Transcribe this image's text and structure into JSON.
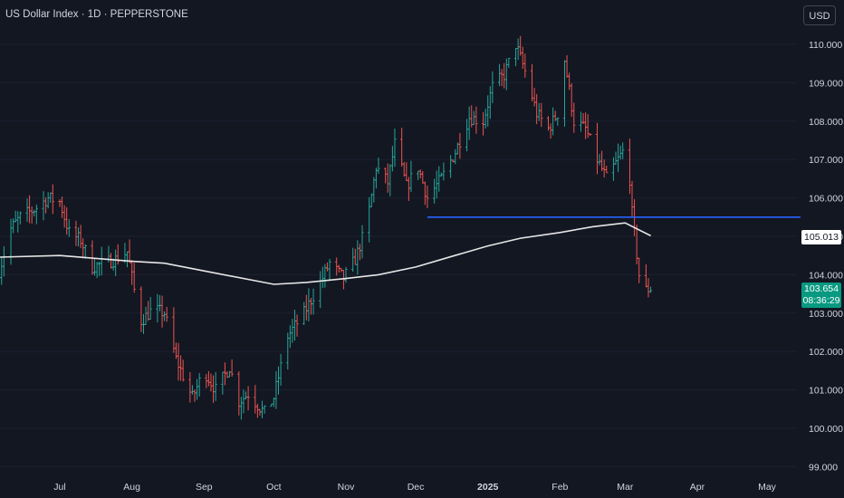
{
  "header": {
    "title": "US Dollar Index · 1D · PEPPERSTONE",
    "currency_button": "USD"
  },
  "colors": {
    "background": "#131722",
    "up": "#26a69a",
    "down": "#ef5350",
    "ma_line": "#e6e6e6",
    "support_line": "#2962ff",
    "price_tag": "#089981"
  },
  "tags": {
    "ma_value": "105.013",
    "last_price": "103.654",
    "countdown": "08:36:29"
  },
  "chart_data": {
    "type": "ohlc",
    "title": "US Dollar Index · 1D · PEPPERSTONE",
    "ylim": [
      98.8,
      110.4
    ],
    "y_ticks": [
      "110.000",
      "109.000",
      "108.000",
      "107.000",
      "106.000",
      "105.000",
      "104.000",
      "103.000",
      "102.000",
      "101.000",
      "100.000",
      "99.000"
    ],
    "x_ticks": [
      {
        "label": "Jul",
        "date": "2024-07-01"
      },
      {
        "label": "Aug",
        "date": "2024-08-01"
      },
      {
        "label": "Sep",
        "date": "2024-09-01"
      },
      {
        "label": "Oct",
        "date": "2024-10-01"
      },
      {
        "label": "Nov",
        "date": "2024-11-01"
      },
      {
        "label": "Dec",
        "date": "2024-12-01"
      },
      {
        "label": "2025",
        "date": "2025-01-01"
      },
      {
        "label": "Feb",
        "date": "2025-02-01"
      },
      {
        "label": "Mar",
        "date": "2025-03-01"
      },
      {
        "label": "Apr",
        "date": "2025-04-01"
      },
      {
        "label": "May",
        "date": "2025-05-01"
      }
    ],
    "price_path": [
      [
        "2024-06-05",
        104.1
      ],
      [
        "2024-06-10",
        105.2
      ],
      [
        "2024-06-14",
        105.5
      ],
      [
        "2024-06-20",
        105.7
      ],
      [
        "2024-06-26",
        106.0
      ],
      [
        "2024-07-01",
        105.9
      ],
      [
        "2024-07-05",
        105.1
      ],
      [
        "2024-07-10",
        104.9
      ],
      [
        "2024-07-15",
        104.2
      ],
      [
        "2024-07-20",
        104.3
      ],
      [
        "2024-07-25",
        104.4
      ],
      [
        "2024-07-30",
        104.6
      ],
      [
        "2024-08-02",
        103.6
      ],
      [
        "2024-08-05",
        102.8
      ],
      [
        "2024-08-10",
        103.1
      ],
      [
        "2024-08-15",
        103.0
      ],
      [
        "2024-08-20",
        101.8
      ],
      [
        "2024-08-27",
        100.8
      ],
      [
        "2024-09-01",
        101.5
      ],
      [
        "2024-09-06",
        101.0
      ],
      [
        "2024-09-12",
        101.6
      ],
      [
        "2024-09-16",
        100.7
      ],
      [
        "2024-09-20",
        100.9
      ],
      [
        "2024-09-27",
        100.4
      ],
      [
        "2024-10-01",
        100.8
      ],
      [
        "2024-10-07",
        102.4
      ],
      [
        "2024-10-14",
        103.0
      ],
      [
        "2024-10-21",
        103.8
      ],
      [
        "2024-10-25",
        104.3
      ],
      [
        "2024-10-31",
        103.9
      ],
      [
        "2024-11-05",
        104.4
      ],
      [
        "2024-11-10",
        105.3
      ],
      [
        "2024-11-14",
        106.8
      ],
      [
        "2024-11-19",
        106.4
      ],
      [
        "2024-11-22",
        107.4
      ],
      [
        "2024-11-27",
        106.3
      ],
      [
        "2024-12-02",
        106.8
      ],
      [
        "2024-12-06",
        106.0
      ],
      [
        "2024-12-12",
        106.5
      ],
      [
        "2024-12-18",
        107.2
      ],
      [
        "2024-12-24",
        108.1
      ],
      [
        "2024-12-30",
        108.0
      ],
      [
        "2025-01-03",
        108.9
      ],
      [
        "2025-01-08",
        109.2
      ],
      [
        "2025-01-13",
        110.0
      ],
      [
        "2025-01-17",
        109.3
      ],
      [
        "2025-01-22",
        108.2
      ],
      [
        "2025-01-27",
        107.8
      ],
      [
        "2025-02-01",
        108.3
      ],
      [
        "2025-02-03",
        109.6
      ],
      [
        "2025-02-07",
        108.0
      ],
      [
        "2025-02-12",
        107.8
      ],
      [
        "2025-02-17",
        107.0
      ],
      [
        "2025-02-21",
        106.5
      ],
      [
        "2025-02-26",
        107.0
      ],
      [
        "2025-03-02",
        107.4
      ],
      [
        "2025-03-04",
        105.6
      ],
      [
        "2025-03-07",
        104.0
      ],
      [
        "2025-03-10",
        103.6
      ],
      [
        "2025-03-12",
        103.65
      ]
    ],
    "ma_series": [
      [
        "2024-06-01",
        104.45
      ],
      [
        "2024-07-01",
        104.5
      ],
      [
        "2024-08-01",
        104.35
      ],
      [
        "2024-08-15",
        104.3
      ],
      [
        "2024-09-01",
        104.1
      ],
      [
        "2024-10-01",
        103.75
      ],
      [
        "2024-10-15",
        103.8
      ],
      [
        "2024-11-01",
        103.9
      ],
      [
        "2024-11-15",
        104.0
      ],
      [
        "2024-12-01",
        104.2
      ],
      [
        "2024-12-15",
        104.45
      ],
      [
        "2025-01-01",
        104.75
      ],
      [
        "2025-01-15",
        104.95
      ],
      [
        "2025-02-01",
        105.1
      ],
      [
        "2025-02-15",
        105.25
      ],
      [
        "2025-03-01",
        105.35
      ],
      [
        "2025-03-12",
        105.013
      ]
    ],
    "support_line": {
      "start": "2024-12-06",
      "end": "2025-05-31",
      "value": 105.5
    }
  }
}
